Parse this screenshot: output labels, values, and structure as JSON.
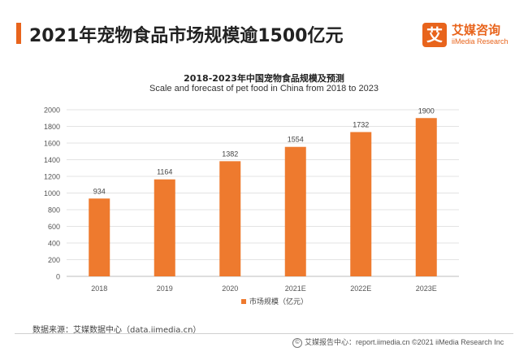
{
  "headline": "2021年宠物食品市场规模逾1500亿元",
  "brand": {
    "cn": "艾媒咨询",
    "en": "iiMedia Research",
    "mark": "艾"
  },
  "source_text": "数据来源：艾媒数据中心（data.iimedia.cn）",
  "footer_text": "艾媒报告中心：report.iimedia.cn ©2021 iiMedia Research Inc",
  "colors": {
    "accent": "#e8641c",
    "bar": "#ee7a2e"
  },
  "chart_data": {
    "type": "bar",
    "title": "2018-2023年中国宠物食品规模及预测",
    "subtitle": "Scale and forecast of pet food in China from 2018 to 2023",
    "categories": [
      "2018",
      "2019",
      "2020",
      "2021E",
      "2022E",
      "2023E"
    ],
    "series": [
      {
        "name": "市场规模（亿元）",
        "values": [
          934,
          1164,
          1382,
          1554,
          1732,
          1900
        ]
      }
    ],
    "yticks": [
      0,
      200,
      400,
      600,
      800,
      1000,
      1200,
      1400,
      1600,
      1800,
      2000
    ],
    "ylim": [
      0,
      2000
    ],
    "grid": true,
    "legend_position": "bottom-center",
    "data_labels": true
  }
}
